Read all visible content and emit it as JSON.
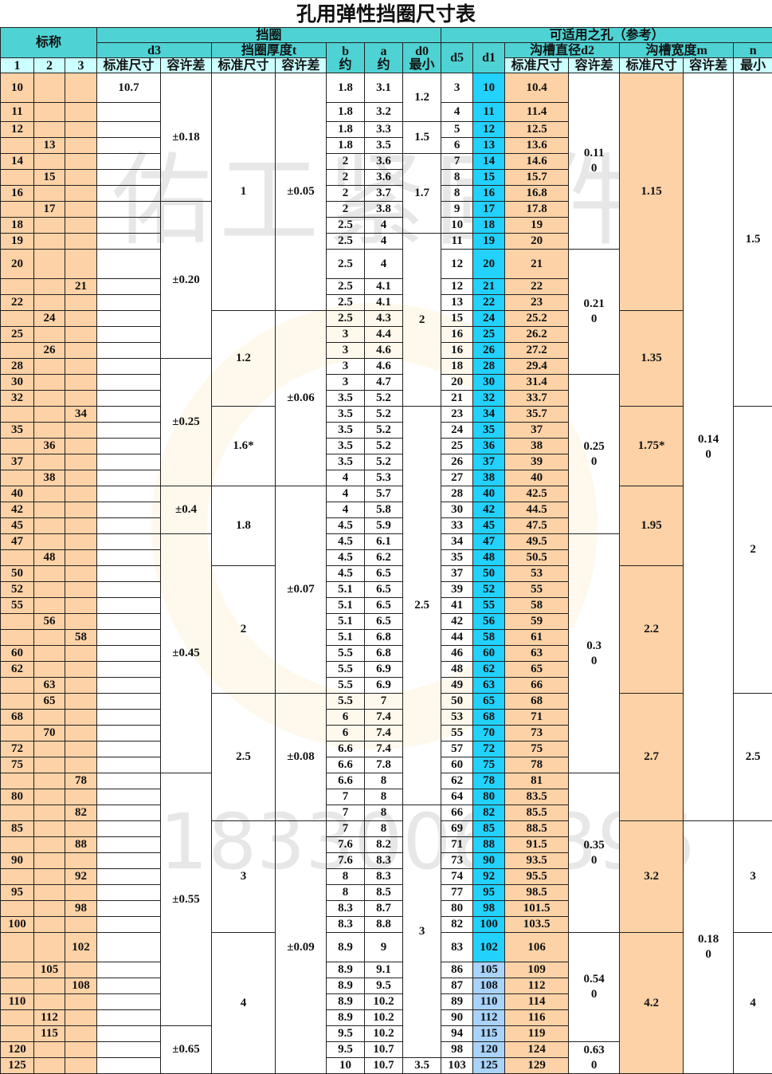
{
  "title": "孔用弹性挡圈尺寸表",
  "watermark": {
    "brand": "佑工紧固件",
    "phone": "18330064396"
  },
  "colors": {
    "header": "#4fd2d3",
    "subheader": "#ccffff",
    "beige": "#fdd2a6",
    "d1": "#22d1fc",
    "d1_large": "#a9d3fb"
  },
  "header": {
    "nominal": "标称",
    "ring": "挡圈",
    "hole": "可适用之孔（参考）",
    "d3": "d3",
    "t": "挡圈厚度t",
    "b": "b\n约",
    "a": "a\n约",
    "d0": "d0\n最小",
    "d5": "d5",
    "d1": "d1",
    "d2": "沟槽直径d2",
    "m": "沟槽宽度m",
    "n": "n",
    "n_sub": "最小",
    "col1": "1",
    "col2": "2",
    "col3": "3",
    "std": "标准尺寸",
    "tol": "容许差"
  },
  "rows": [
    {
      "series": 1,
      "nominal": "10",
      "d3": "10.7",
      "b": "1.8",
      "a": "3.1",
      "d5": "3",
      "d1": "10",
      "d2": "10.4"
    },
    {
      "series": 1,
      "nominal": "11",
      "d3": "",
      "b": "1.8",
      "a": "3.2",
      "d5": "4",
      "d1": "11",
      "d2": "11.4"
    },
    {
      "series": 1,
      "nominal": "12",
      "d3": "",
      "b": "1.8",
      "a": "3.3",
      "d5": "5",
      "d1": "12",
      "d2": "12.5"
    },
    {
      "series": 2,
      "nominal": "13",
      "d3": "",
      "b": "1.8",
      "a": "3.5",
      "d5": "6",
      "d1": "13",
      "d2": "13.6"
    },
    {
      "series": 1,
      "nominal": "14",
      "d3": "",
      "b": "2",
      "a": "3.6",
      "d5": "7",
      "d1": "14",
      "d2": "14.6"
    },
    {
      "series": 2,
      "nominal": "15",
      "d3": "",
      "b": "2",
      "a": "3.6",
      "d5": "8",
      "d1": "15",
      "d2": "15.7"
    },
    {
      "series": 1,
      "nominal": "16",
      "d3": "",
      "b": "2",
      "a": "3.7",
      "d5": "8",
      "d1": "16",
      "d2": "16.8"
    },
    {
      "series": 2,
      "nominal": "17",
      "d3": "",
      "b": "2",
      "a": "3.8",
      "d5": "9",
      "d1": "17",
      "d2": "17.8"
    },
    {
      "series": 1,
      "nominal": "18",
      "d3": "",
      "b": "2.5",
      "a": "4",
      "d5": "10",
      "d1": "18",
      "d2": "19"
    },
    {
      "series": 1,
      "nominal": "19",
      "d3": "",
      "b": "2.5",
      "a": "4",
      "d5": "11",
      "d1": "19",
      "d2": "20"
    },
    {
      "series": 1,
      "nominal": "20",
      "d3": "",
      "b": "2.5",
      "a": "4",
      "d5": "12",
      "d1": "20",
      "d2": "21"
    },
    {
      "series": 3,
      "nominal": "21",
      "d3": "",
      "b": "2.5",
      "a": "4.1",
      "d5": "12",
      "d1": "21",
      "d2": "22"
    },
    {
      "series": 1,
      "nominal": "22",
      "d3": "",
      "b": "2.5",
      "a": "4.1",
      "d5": "13",
      "d1": "22",
      "d2": "23"
    },
    {
      "series": 2,
      "nominal": "24",
      "d3": "",
      "b": "2.5",
      "a": "4.3",
      "d5": "15",
      "d1": "24",
      "d2": "25.2"
    },
    {
      "series": 1,
      "nominal": "25",
      "d3": "",
      "b": "3",
      "a": "4.4",
      "d5": "16",
      "d1": "25",
      "d2": "26.2"
    },
    {
      "series": 2,
      "nominal": "26",
      "d3": "",
      "b": "3",
      "a": "4.6",
      "d5": "16",
      "d1": "26",
      "d2": "27.2"
    },
    {
      "series": 1,
      "nominal": "28",
      "d3": "",
      "b": "3",
      "a": "4.6",
      "d5": "18",
      "d1": "28",
      "d2": "29.4"
    },
    {
      "series": 1,
      "nominal": "30",
      "d3": "",
      "b": "3",
      "a": "4.7",
      "d5": "20",
      "d1": "30",
      "d2": "31.4"
    },
    {
      "series": 1,
      "nominal": "32",
      "d3": "",
      "b": "3.5",
      "a": "5.2",
      "d5": "21",
      "d1": "32",
      "d2": "33.7"
    },
    {
      "series": 3,
      "nominal": "34",
      "d3": "",
      "b": "3.5",
      "a": "5.2",
      "d5": "23",
      "d1": "34",
      "d2": "35.7"
    },
    {
      "series": 1,
      "nominal": "35",
      "d3": "",
      "b": "3.5",
      "a": "5.2",
      "d5": "24",
      "d1": "35",
      "d2": "37"
    },
    {
      "series": 2,
      "nominal": "36",
      "d3": "",
      "b": "3.5",
      "a": "5.2",
      "d5": "25",
      "d1": "36",
      "d2": "38"
    },
    {
      "series": 1,
      "nominal": "37",
      "d3": "",
      "b": "3.5",
      "a": "5.2",
      "d5": "26",
      "d1": "37",
      "d2": "39"
    },
    {
      "series": 2,
      "nominal": "38",
      "d3": "",
      "b": "4",
      "a": "5.3",
      "d5": "27",
      "d1": "38",
      "d2": "40"
    },
    {
      "series": 1,
      "nominal": "40",
      "d3": "",
      "b": "4",
      "a": "5.7",
      "d5": "28",
      "d1": "40",
      "d2": "42.5"
    },
    {
      "series": 1,
      "nominal": "42",
      "d3": "",
      "b": "4",
      "a": "5.8",
      "d5": "30",
      "d1": "42",
      "d2": "44.5"
    },
    {
      "series": 1,
      "nominal": "45",
      "d3": "",
      "b": "4.5",
      "a": "5.9",
      "d5": "33",
      "d1": "45",
      "d2": "47.5"
    },
    {
      "series": 1,
      "nominal": "47",
      "d3": "",
      "b": "4.5",
      "a": "6.1",
      "d5": "34",
      "d1": "47",
      "d2": "49.5"
    },
    {
      "series": 2,
      "nominal": "48",
      "d3": "",
      "b": "4.5",
      "a": "6.2",
      "d5": "35",
      "d1": "48",
      "d2": "50.5"
    },
    {
      "series": 1,
      "nominal": "50",
      "d3": "",
      "b": "4.5",
      "a": "6.5",
      "d5": "37",
      "d1": "50",
      "d2": "53"
    },
    {
      "series": 1,
      "nominal": "52",
      "d3": "",
      "b": "5.1",
      "a": "6.5",
      "d5": "39",
      "d1": "52",
      "d2": "55"
    },
    {
      "series": 1,
      "nominal": "55",
      "d3": "",
      "b": "5.1",
      "a": "6.5",
      "d5": "41",
      "d1": "55",
      "d2": "58"
    },
    {
      "series": 2,
      "nominal": "56",
      "d3": "",
      "b": "5.1",
      "a": "6.5",
      "d5": "42",
      "d1": "56",
      "d2": "59"
    },
    {
      "series": 3,
      "nominal": "58",
      "d3": "",
      "b": "5.1",
      "a": "6.8",
      "d5": "44",
      "d1": "58",
      "d2": "61"
    },
    {
      "series": 1,
      "nominal": "60",
      "d3": "",
      "b": "5.5",
      "a": "6.8",
      "d5": "46",
      "d1": "60",
      "d2": "63"
    },
    {
      "series": 1,
      "nominal": "62",
      "d3": "",
      "b": "5.5",
      "a": "6.9",
      "d5": "48",
      "d1": "62",
      "d2": "65"
    },
    {
      "series": 2,
      "nominal": "63",
      "d3": "",
      "b": "5.5",
      "a": "6.9",
      "d5": "49",
      "d1": "63",
      "d2": "66"
    },
    {
      "series": 2,
      "nominal": "65",
      "d3": "",
      "b": "5.5",
      "a": "7",
      "d5": "50",
      "d1": "65",
      "d2": "68"
    },
    {
      "series": 1,
      "nominal": "68",
      "d3": "",
      "b": "6",
      "a": "7.4",
      "d5": "53",
      "d1": "68",
      "d2": "71"
    },
    {
      "series": 2,
      "nominal": "70",
      "d3": "",
      "b": "6",
      "a": "7.4",
      "d5": "55",
      "d1": "70",
      "d2": "73"
    },
    {
      "series": 1,
      "nominal": "72",
      "d3": "",
      "b": "6.6",
      "a": "7.4",
      "d5": "57",
      "d1": "72",
      "d2": "75"
    },
    {
      "series": 1,
      "nominal": "75",
      "d3": "",
      "b": "6.6",
      "a": "7.8",
      "d5": "60",
      "d1": "75",
      "d2": "78"
    },
    {
      "series": 3,
      "nominal": "78",
      "d3": "",
      "b": "6.6",
      "a": "8",
      "d5": "62",
      "d1": "78",
      "d2": "81"
    },
    {
      "series": 1,
      "nominal": "80",
      "d3": "",
      "b": "7",
      "a": "8",
      "d5": "64",
      "d1": "80",
      "d2": "83.5"
    },
    {
      "series": 3,
      "nominal": "82",
      "d3": "",
      "b": "7",
      "a": "8",
      "d5": "66",
      "d1": "82",
      "d2": "85.5"
    },
    {
      "series": 1,
      "nominal": "85",
      "d3": "",
      "b": "7",
      "a": "8",
      "d5": "69",
      "d1": "85",
      "d2": "88.5"
    },
    {
      "series": 3,
      "nominal": "88",
      "d3": "",
      "b": "7.6",
      "a": "8.2",
      "d5": "71",
      "d1": "88",
      "d2": "91.5"
    },
    {
      "series": 1,
      "nominal": "90",
      "d3": "",
      "b": "7.6",
      "a": "8.3",
      "d5": "73",
      "d1": "90",
      "d2": "93.5"
    },
    {
      "series": 3,
      "nominal": "92",
      "d3": "",
      "b": "8",
      "a": "8.3",
      "d5": "74",
      "d1": "92",
      "d2": "95.5"
    },
    {
      "series": 1,
      "nominal": "95",
      "d3": "",
      "b": "8",
      "a": "8.5",
      "d5": "77",
      "d1": "95",
      "d2": "98.5"
    },
    {
      "series": 3,
      "nominal": "98",
      "d3": "",
      "b": "8.3",
      "a": "8.7",
      "d5": "80",
      "d1": "98",
      "d2": "101.5"
    },
    {
      "series": 1,
      "nominal": "100",
      "d3": "",
      "b": "8.3",
      "a": "8.8",
      "d5": "82",
      "d1": "100",
      "d2": "103.5"
    },
    {
      "series": 3,
      "nominal": "102",
      "d3": "",
      "b": "8.9",
      "a": "9",
      "d5": "83",
      "d1": "102",
      "d2": "106"
    },
    {
      "series": 2,
      "nominal": "105",
      "d3": "",
      "b": "8.9",
      "a": "9.1",
      "d5": "86",
      "d1": "105",
      "d2": "109"
    },
    {
      "series": 3,
      "nominal": "108",
      "d3": "",
      "b": "8.9",
      "a": "9.5",
      "d5": "87",
      "d1": "108",
      "d2": "112"
    },
    {
      "series": 1,
      "nominal": "110",
      "d3": "",
      "b": "8.9",
      "a": "10.2",
      "d5": "89",
      "d1": "110",
      "d2": "114"
    },
    {
      "series": 2,
      "nominal": "112",
      "d3": "",
      "b": "8.9",
      "a": "10.2",
      "d5": "90",
      "d1": "112",
      "d2": "116"
    },
    {
      "series": 2,
      "nominal": "115",
      "d3": "",
      "b": "9.5",
      "a": "10.2",
      "d5": "94",
      "d1": "115",
      "d2": "119"
    },
    {
      "series": 1,
      "nominal": "120",
      "d3": "",
      "b": "9.5",
      "a": "10.7",
      "d5": "98",
      "d1": "120",
      "d2": "124"
    },
    {
      "series": 1,
      "nominal": "125",
      "d3": "",
      "b": "10",
      "a": "10.7",
      "d5": "103",
      "d1": "125",
      "d2": "129"
    }
  ],
  "groups": {
    "d3_tol": [
      {
        "v": "±0.18",
        "span": 7
      },
      {
        "v": "±0.20",
        "span": 9
      },
      {
        "v": "±0.25",
        "span": 8
      },
      {
        "v": "±0.4",
        "span": 3
      },
      {
        "v": "±0.45",
        "span": 15
      },
      {
        "v": "±0.55",
        "span": 15
      },
      {
        "v": "±0.65",
        "span": 3
      }
    ],
    "t_std": [
      {
        "v": "1",
        "span": 13
      },
      {
        "v": "1.2",
        "span": 6
      },
      {
        "v": "1.6*",
        "span": 5
      },
      {
        "v": "1.8",
        "span": 5
      },
      {
        "v": "2",
        "span": 8
      },
      {
        "v": "2.5",
        "span": 8
      },
      {
        "v": "3",
        "span": 7
      },
      {
        "v": "4",
        "span": 8
      }
    ],
    "t_tol": [
      {
        "v": "±0.05",
        "span": 13
      },
      {
        "v": "±0.06",
        "span": 11
      },
      {
        "v": "±0.07",
        "span": 13
      },
      {
        "v": "±0.08",
        "span": 8
      },
      {
        "v": "±0.09",
        "span": 15
      }
    ],
    "d0": [
      {
        "v": "1.2",
        "span": 2
      },
      {
        "v": "1.5",
        "span": 2
      },
      {
        "v": "1.7",
        "span": 5
      },
      {
        "v": "2",
        "span": 10
      },
      {
        "v": "2.5",
        "span": 25
      },
      {
        "v": "3",
        "span": 15
      },
      {
        "v": "3.5",
        "span": 1
      }
    ],
    "d2_tol": [
      {
        "v": "0.11\n0",
        "span": 10
      },
      {
        "v": "0.21\n0",
        "span": 7
      },
      {
        "v": "0.25\n0",
        "span": 10
      },
      {
        "v": "0.3\n0",
        "span": 15
      },
      {
        "v": "0.35\n0",
        "span": 10
      },
      {
        "v": "0.54\n0",
        "span": 6
      },
      {
        "v": "0.63\n0",
        "span": 2
      }
    ],
    "m_std": [
      {
        "v": "1.15",
        "span": 13
      },
      {
        "v": "1.35",
        "span": 6
      },
      {
        "v": "1.75*",
        "span": 5
      },
      {
        "v": "1.95",
        "span": 5
      },
      {
        "v": "2.2",
        "span": 8
      },
      {
        "v": "2.7",
        "span": 8
      },
      {
        "v": "3.2",
        "span": 7
      },
      {
        "v": "4.2",
        "span": 8
      }
    ],
    "m_tol": [
      {
        "v": "0.14\n0",
        "span": 45
      },
      {
        "v": "0.18\n0",
        "span": 15
      }
    ],
    "n": [
      {
        "v": "1.5",
        "span": 19
      },
      {
        "v": "2",
        "span": 18
      },
      {
        "v": "2.5",
        "span": 8
      },
      {
        "v": "3",
        "span": 7
      },
      {
        "v": "4",
        "span": 8
      }
    ]
  }
}
